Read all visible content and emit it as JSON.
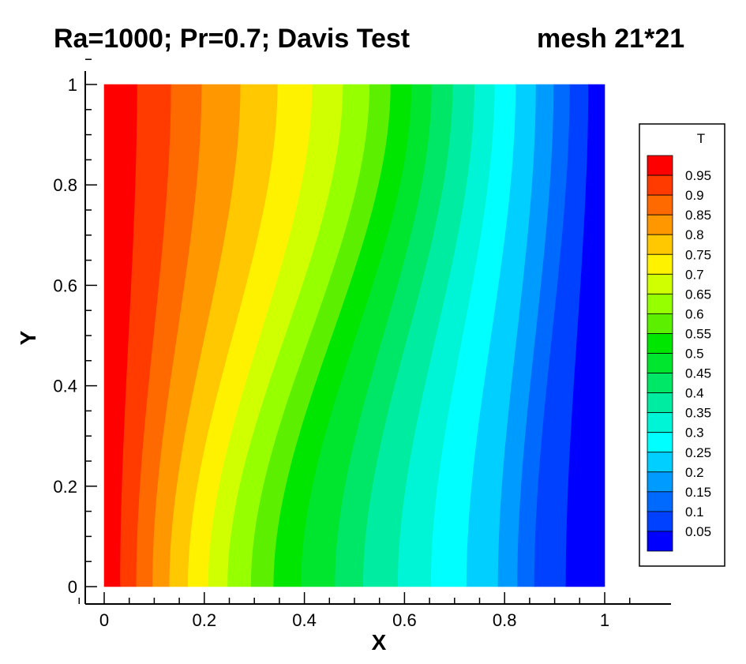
{
  "title": "Ra=1000; Pr=0.7; Davis Test",
  "subtitle": "mesh 21*21",
  "chart_data": {
    "type": "heatmap",
    "variable": "T",
    "xlabel": "X",
    "ylabel": "Y",
    "xlim": [
      0,
      1
    ],
    "ylim": [
      0,
      1
    ],
    "x_ticks": [
      "0",
      "0.2",
      "0.4",
      "0.6",
      "0.8",
      "1"
    ],
    "y_ticks": [
      "0",
      "0.2",
      "0.4",
      "0.6",
      "0.8",
      "1"
    ],
    "legend_title": "T",
    "legend_position": "right",
    "legend_levels": [
      "0.95",
      "0.9",
      "0.85",
      "0.8",
      "0.75",
      "0.7",
      "0.65",
      "0.6",
      "0.55",
      "0.5",
      "0.45",
      "0.4",
      "0.35",
      "0.3",
      "0.25",
      "0.2",
      "0.15",
      "0.1",
      "0.05"
    ],
    "level_values": [
      0.95,
      0.9,
      0.85,
      0.8,
      0.75,
      0.7,
      0.65,
      0.6,
      0.55,
      0.5,
      0.45,
      0.4,
      0.35,
      0.3,
      0.25,
      0.2,
      0.15,
      0.1,
      0.05
    ],
    "band_colors": [
      "#ff0000",
      "#ff3b00",
      "#ff6a00",
      "#ff9800",
      "#ffc800",
      "#fff200",
      "#cfff00",
      "#96ff00",
      "#5cf000",
      "#00e600",
      "#00e62e",
      "#00e666",
      "#00eca0",
      "#00f5d6",
      "#00ffff",
      "#00cfff",
      "#009bff",
      "#006aff",
      "#0040ff",
      "#0000ff"
    ],
    "contour_x_at_bottom": [
      0.0323,
      0.0645,
      0.0968,
      0.1306,
      0.1677,
      0.2081,
      0.2468,
      0.2935,
      0.3387,
      0.3935,
      0.4613,
      0.5177,
      0.5871,
      0.6532,
      0.7242,
      0.7871,
      0.8258,
      0.8597,
      0.9226
    ],
    "contour_x_at_top": [
      0.0661,
      0.1339,
      0.1952,
      0.2726,
      0.3468,
      0.4161,
      0.4774,
      0.5306,
      0.5726,
      0.6145,
      0.6548,
      0.6968,
      0.7403,
      0.7806,
      0.8226,
      0.8629,
      0.8984,
      0.9306,
      0.9677
    ]
  }
}
